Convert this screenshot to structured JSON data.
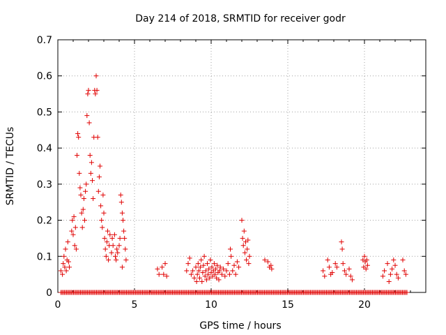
{
  "chart_data": {
    "type": "scatter",
    "title": "Day 214 of 2018, SRMTID for receiver godr",
    "xlabel": "GPS time / hours",
    "ylabel": "SRMTID / TECUs",
    "xlim": [
      0,
      24
    ],
    "ylim": [
      0,
      0.7
    ],
    "xticks": [
      "0",
      "5",
      "10",
      "15",
      "20"
    ],
    "yticks": [
      "0",
      "0.1",
      "0.2",
      "0.3",
      "0.4",
      "0.5",
      "0.6",
      "0.7"
    ],
    "grid": true,
    "marker": "+",
    "color": "#e00000",
    "series": [
      {
        "name": "SRMTID",
        "points": [
          [
            0.2,
            0.06
          ],
          [
            0.3,
            0.05
          ],
          [
            0.35,
            0.08
          ],
          [
            0.4,
            0.1
          ],
          [
            0.45,
            0.07
          ],
          [
            0.5,
            0.12
          ],
          [
            0.55,
            0.06
          ],
          [
            0.6,
            0.09
          ],
          [
            0.65,
            0.14
          ],
          [
            0.7,
            0.085
          ],
          [
            0.75,
            0.07
          ],
          [
            0.9,
            0.17
          ],
          [
            0.95,
            0.2
          ],
          [
            1.0,
            0.16
          ],
          [
            1.05,
            0.21
          ],
          [
            1.1,
            0.13
          ],
          [
            1.15,
            0.18
          ],
          [
            1.2,
            0.12
          ],
          [
            1.25,
            0.38
          ],
          [
            1.3,
            0.44
          ],
          [
            1.35,
            0.43
          ],
          [
            1.4,
            0.33
          ],
          [
            1.45,
            0.29
          ],
          [
            1.5,
            0.27
          ],
          [
            1.55,
            0.22
          ],
          [
            1.6,
            0.18
          ],
          [
            1.65,
            0.23
          ],
          [
            1.7,
            0.26
          ],
          [
            1.75,
            0.2
          ],
          [
            1.8,
            0.28
          ],
          [
            1.85,
            0.3
          ],
          [
            1.9,
            0.49
          ],
          [
            1.95,
            0.55
          ],
          [
            2.0,
            0.56
          ],
          [
            2.05,
            0.47
          ],
          [
            2.1,
            0.38
          ],
          [
            2.15,
            0.33
          ],
          [
            2.2,
            0.36
          ],
          [
            2.25,
            0.31
          ],
          [
            2.3,
            0.26
          ],
          [
            2.35,
            0.43
          ],
          [
            2.4,
            0.56
          ],
          [
            2.45,
            0.55
          ],
          [
            2.5,
            0.6
          ],
          [
            2.55,
            0.56
          ],
          [
            2.6,
            0.43
          ],
          [
            2.65,
            0.28
          ],
          [
            2.7,
            0.32
          ],
          [
            2.75,
            0.35
          ],
          [
            2.8,
            0.24
          ],
          [
            2.85,
            0.2
          ],
          [
            2.9,
            0.18
          ],
          [
            2.95,
            0.27
          ],
          [
            3.0,
            0.22
          ],
          [
            3.05,
            0.15
          ],
          [
            3.1,
            0.12
          ],
          [
            3.15,
            0.1
          ],
          [
            3.2,
            0.14
          ],
          [
            3.25,
            0.17
          ],
          [
            3.3,
            0.09
          ],
          [
            3.35,
            0.13
          ],
          [
            3.4,
            0.16
          ],
          [
            3.5,
            0.11
          ],
          [
            3.55,
            0.15
          ],
          [
            3.6,
            0.13
          ],
          [
            3.7,
            0.16
          ],
          [
            3.75,
            0.1
          ],
          [
            3.8,
            0.09
          ],
          [
            3.85,
            0.12
          ],
          [
            3.9,
            0.11
          ],
          [
            4.0,
            0.13
          ],
          [
            4.05,
            0.15
          ],
          [
            4.1,
            0.27
          ],
          [
            4.15,
            0.25
          ],
          [
            4.2,
            0.22
          ],
          [
            4.25,
            0.2
          ],
          [
            4.3,
            0.17
          ],
          [
            4.35,
            0.15
          ],
          [
            4.4,
            0.12
          ],
          [
            4.45,
            0.09
          ],
          [
            4.2,
            0.07
          ],
          [
            6.5,
            0.065
          ],
          [
            6.6,
            0.05
          ],
          [
            6.8,
            0.07
          ],
          [
            6.9,
            0.05
          ],
          [
            7.0,
            0.08
          ],
          [
            7.1,
            0.045
          ],
          [
            8.4,
            0.06
          ],
          [
            8.5,
            0.08
          ],
          [
            8.6,
            0.095
          ],
          [
            8.7,
            0.05
          ],
          [
            8.8,
            0.06
          ],
          [
            8.9,
            0.04
          ],
          [
            9.0,
            0.07
          ],
          [
            9.05,
            0.03
          ],
          [
            9.1,
            0.05
          ],
          [
            9.15,
            0.08
          ],
          [
            9.2,
            0.06
          ],
          [
            9.25,
            0.04
          ],
          [
            9.3,
            0.07
          ],
          [
            9.35,
            0.09
          ],
          [
            9.4,
            0.03
          ],
          [
            9.45,
            0.055
          ],
          [
            9.5,
            0.075
          ],
          [
            9.55,
            0.1
          ],
          [
            9.6,
            0.045
          ],
          [
            9.65,
            0.06
          ],
          [
            9.7,
            0.035
          ],
          [
            9.75,
            0.08
          ],
          [
            9.8,
            0.05
          ],
          [
            9.85,
            0.065
          ],
          [
            9.9,
            0.04
          ],
          [
            9.95,
            0.09
          ],
          [
            10.0,
            0.055
          ],
          [
            10.05,
            0.07
          ],
          [
            10.1,
            0.045
          ],
          [
            10.15,
            0.06
          ],
          [
            10.2,
            0.08
          ],
          [
            10.25,
            0.05
          ],
          [
            10.3,
            0.065
          ],
          [
            10.35,
            0.04
          ],
          [
            10.4,
            0.075
          ],
          [
            10.45,
            0.055
          ],
          [
            10.5,
            0.035
          ],
          [
            10.55,
            0.06
          ],
          [
            10.6,
            0.07
          ],
          [
            10.7,
            0.05
          ],
          [
            10.8,
            0.065
          ],
          [
            10.9,
            0.045
          ],
          [
            11.0,
            0.06
          ],
          [
            11.1,
            0.08
          ],
          [
            11.2,
            0.05
          ],
          [
            11.25,
            0.12
          ],
          [
            11.3,
            0.1
          ],
          [
            11.4,
            0.06
          ],
          [
            11.5,
            0.075
          ],
          [
            11.6,
            0.05
          ],
          [
            11.7,
            0.085
          ],
          [
            11.8,
            0.07
          ],
          [
            12.0,
            0.2
          ],
          [
            12.05,
            0.15
          ],
          [
            12.1,
            0.13
          ],
          [
            12.15,
            0.17
          ],
          [
            12.2,
            0.11
          ],
          [
            12.25,
            0.14
          ],
          [
            12.3,
            0.09
          ],
          [
            12.35,
            0.12
          ],
          [
            12.4,
            0.145
          ],
          [
            12.45,
            0.08
          ],
          [
            12.5,
            0.1
          ],
          [
            13.5,
            0.09
          ],
          [
            13.7,
            0.085
          ],
          [
            13.8,
            0.07
          ],
          [
            13.9,
            0.075
          ],
          [
            13.95,
            0.065
          ],
          [
            17.3,
            0.06
          ],
          [
            17.4,
            0.045
          ],
          [
            17.6,
            0.09
          ],
          [
            17.7,
            0.07
          ],
          [
            17.8,
            0.05
          ],
          [
            17.9,
            0.055
          ],
          [
            18.1,
            0.08
          ],
          [
            18.2,
            0.07
          ],
          [
            18.5,
            0.14
          ],
          [
            18.55,
            0.12
          ],
          [
            18.6,
            0.08
          ],
          [
            18.7,
            0.06
          ],
          [
            18.8,
            0.05
          ],
          [
            19.0,
            0.065
          ],
          [
            19.1,
            0.045
          ],
          [
            19.2,
            0.035
          ],
          [
            19.9,
            0.09
          ],
          [
            19.95,
            0.07
          ],
          [
            20.0,
            0.1
          ],
          [
            20.05,
            0.085
          ],
          [
            20.1,
            0.065
          ],
          [
            20.15,
            0.09
          ],
          [
            20.2,
            0.075
          ],
          [
            21.2,
            0.045
          ],
          [
            21.3,
            0.06
          ],
          [
            21.5,
            0.08
          ],
          [
            21.6,
            0.03
          ],
          [
            21.7,
            0.05
          ],
          [
            21.8,
            0.065
          ],
          [
            21.9,
            0.09
          ],
          [
            22.0,
            0.075
          ],
          [
            22.1,
            0.05
          ],
          [
            22.2,
            0.04
          ],
          [
            22.5,
            0.09
          ],
          [
            22.6,
            0.06
          ],
          [
            22.7,
            0.05
          ]
        ]
      },
      {
        "name": "zero-baseline",
        "range": [
          0.2,
          22.8
        ],
        "step": 0.075,
        "value": 0
      }
    ]
  }
}
